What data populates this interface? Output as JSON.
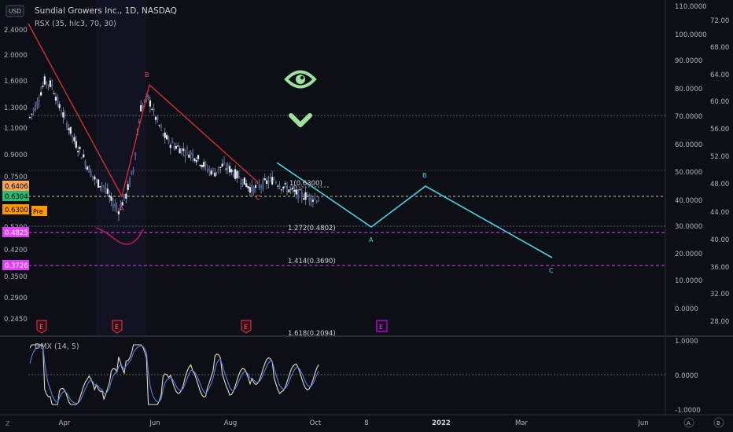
{
  "header": {
    "currency": "USD",
    "title": "Sundial Growers Inc., 1D, NASDAQ",
    "indicator": "RSX (35, hlc3, 70, 30)"
  },
  "left_axis": {
    "ticks": [
      "2.4000",
      "2.0000",
      "1.6000",
      "1.3000",
      "1.1000",
      "0.9000",
      "0.7500",
      "0.5200",
      "0.4200",
      "0.3500",
      "0.2900",
      "0.2450"
    ],
    "badges": [
      {
        "text": "0.6406",
        "bg": "#f5a55a",
        "fg": "#000000"
      },
      {
        "text": "0.6304",
        "bg": "#2eb872",
        "fg": "#000000"
      },
      {
        "text": "0.6300",
        "bg": "#ff9800",
        "fg": "#000000"
      },
      {
        "text": "0.4825",
        "bg": "#e040fb",
        "fg": "#ffffff"
      },
      {
        "text": "0.3726",
        "bg": "#e040fb",
        "fg": "#ffffff"
      }
    ],
    "pre_label": "Pre"
  },
  "right_axis_inner": {
    "ticks": [
      "110.0000",
      "100.0000",
      "90.0000",
      "80.0000",
      "70.0000",
      "60.0000",
      "50.0000",
      "40.0000",
      "30.0000",
      "20.0000",
      "10.0000",
      "0.0000"
    ]
  },
  "right_axis_outer": {
    "ticks": [
      "72.00",
      "68.00",
      "64.00",
      "60.00",
      "56.00",
      "52.00",
      "48.00",
      "44.00",
      "40.00",
      "36.00",
      "32.00",
      "28.00"
    ]
  },
  "fib_labels": [
    "1(0.6300)",
    "1.272(0.4802)",
    "1.414(0.3690)",
    "1.618(0.2094)"
  ],
  "wave_labels": {
    "red": [
      "A",
      "B",
      "C"
    ],
    "cyan": [
      "A",
      "B",
      "C"
    ]
  },
  "earnings_marker": "E",
  "sub_panel": {
    "indicator": "DMX (14, 5)",
    "ticks": [
      "1.0000",
      "0.0000",
      "-1.0000"
    ]
  },
  "time_axis": {
    "labels": [
      "Apr",
      "Jun",
      "Aug",
      "Oct",
      "8",
      "2022",
      "Mar",
      "Jun"
    ]
  },
  "bottom_controls": {
    "left": "Z",
    "a": "A",
    "b": "B"
  },
  "colors": {
    "background": "#0d0f17",
    "red_wave": "#d32f2f",
    "cyan_wave": "#4dd0e1",
    "fib_dashed": "#e040fb",
    "eye_icon": "#9fe0a0",
    "candle": "#c9cfe0",
    "dmx_line1": "#e0e0c0",
    "dmx_line2": "#5b7cdc"
  },
  "chart_data": {
    "type": "line",
    "series": [
      {
        "values": [
          1.2,
          1.35,
          1.6,
          1.55,
          1.3,
          1.15,
          1.0,
          0.9,
          0.8,
          0.72,
          0.7,
          0.62,
          0.58,
          0.65,
          0.8,
          1.3,
          1.4,
          1.2,
          1.05,
          0.98,
          0.95,
          0.92,
          0.9,
          0.85,
          0.8,
          0.78,
          0.82,
          0.8,
          0.76,
          0.72,
          0.68,
          0.7,
          0.72,
          0.74,
          0.7,
          0.68,
          0.66,
          0.65,
          0.64,
          0.63
        ]
      }
    ]
  }
}
